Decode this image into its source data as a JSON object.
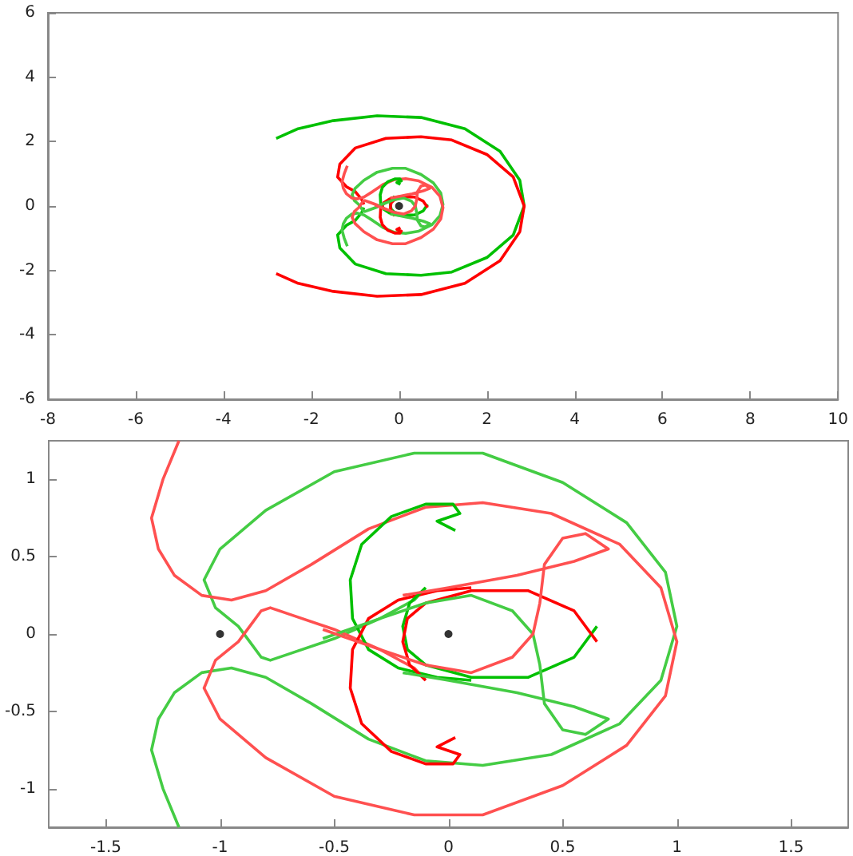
{
  "chart_data": [
    {
      "type": "line",
      "marker": "none",
      "grid": false,
      "xlim": [
        -8,
        10
      ],
      "xticks": [
        -8,
        -6,
        -4,
        -2,
        0,
        2,
        4,
        6,
        8,
        10
      ],
      "ylim": [
        -6,
        6
      ],
      "yticks": [
        -6,
        -4,
        -2,
        0,
        2,
        4,
        6
      ],
      "series": [
        {
          "color": "#00c000",
          "x": [
            -2.8,
            -2.3,
            -1.5,
            -0.5,
            0.5,
            1.5,
            2.3,
            2.75,
            2.85,
            2.6,
            2.0,
            1.2,
            0.5,
            -0.3,
            -1.0,
            -1.35,
            -1.4,
            -1.2,
            -1.0,
            -0.85,
            -0.8
          ],
          "values": [
            2.1,
            2.4,
            2.65,
            2.8,
            2.75,
            2.4,
            1.7,
            0.8,
            0,
            -0.9,
            -1.6,
            -2.05,
            -2.15,
            -2.1,
            -1.8,
            -1.3,
            -0.9,
            -0.6,
            -0.45,
            -0.2,
            -0.05
          ]
        },
        {
          "color": "#ff0000",
          "x": [
            -2.8,
            -2.3,
            -1.5,
            -0.5,
            0.5,
            1.5,
            2.3,
            2.75,
            2.85,
            2.6,
            2.0,
            1.2,
            0.5,
            -0.3,
            -1.0,
            -1.35,
            -1.4,
            -1.2,
            -1.0,
            -0.85,
            -0.8
          ],
          "values": [
            -2.1,
            -2.4,
            -2.65,
            -2.8,
            -2.75,
            -2.4,
            -1.7,
            -0.8,
            0,
            0.9,
            1.6,
            2.05,
            2.15,
            2.1,
            1.8,
            1.3,
            0.9,
            0.6,
            0.45,
            0.2,
            0.05
          ]
        },
        {
          "color": "#44cc44",
          "x": [
            -1.18,
            -1.25,
            -1.3,
            -1.27,
            -1.2,
            -1.08,
            -0.95,
            -0.8,
            -0.6,
            -0.35,
            -0.1,
            0.15,
            0.45,
            0.75,
            0.93,
            1.0,
            0.95,
            0.78,
            0.5,
            0.15,
            -0.15,
            -0.5,
            -0.8,
            -1.0,
            -1.07,
            -1.02,
            -0.92,
            -0.87,
            -0.82,
            -0.78,
            -0.7,
            -0.5,
            -0.3,
            -0.15,
            -0.1
          ],
          "values": [
            -1.25,
            -1.0,
            -0.75,
            -0.55,
            -0.38,
            -0.25,
            -0.22,
            -0.28,
            -0.45,
            -0.68,
            -0.82,
            -0.85,
            -0.78,
            -0.58,
            -0.3,
            0.05,
            0.4,
            0.72,
            0.98,
            1.17,
            1.17,
            1.05,
            0.8,
            0.55,
            0.35,
            0.17,
            0.05,
            -0.05,
            -0.15,
            -0.17,
            -0.13,
            -0.03,
            0.1,
            0.22,
            0.3
          ]
        },
        {
          "color": "#ff5050",
          "x": [
            -1.18,
            -1.25,
            -1.3,
            -1.27,
            -1.2,
            -1.08,
            -0.95,
            -0.8,
            -0.6,
            -0.35,
            -0.1,
            0.15,
            0.45,
            0.75,
            0.93,
            1.0,
            0.95,
            0.78,
            0.5,
            0.15,
            -0.15,
            -0.5,
            -0.8,
            -1.0,
            -1.07,
            -1.02,
            -0.92,
            -0.87,
            -0.82,
            -0.78,
            -0.7,
            -0.5,
            -0.3,
            -0.15,
            -0.1
          ],
          "values": [
            1.25,
            1.0,
            0.75,
            0.55,
            0.38,
            0.25,
            0.22,
            0.28,
            0.45,
            0.68,
            0.82,
            0.85,
            0.78,
            0.58,
            0.3,
            -0.05,
            -0.4,
            -0.72,
            -0.98,
            -1.17,
            -1.17,
            -1.05,
            -0.8,
            -0.55,
            -0.35,
            -0.17,
            -0.05,
            0.05,
            0.15,
            0.17,
            0.13,
            0.03,
            -0.1,
            -0.22,
            -0.3
          ]
        },
        {
          "color": "#00c000",
          "x": [
            0.03,
            -0.05,
            0.05,
            0.02,
            -0.1,
            -0.25,
            -0.38,
            -0.43,
            -0.42,
            -0.35,
            -0.22,
            -0.05,
            0.1
          ],
          "values": [
            0.67,
            0.73,
            0.78,
            0.84,
            0.84,
            0.76,
            0.58,
            0.35,
            0.1,
            -0.1,
            -0.22,
            -0.28,
            -0.3
          ]
        },
        {
          "color": "#ff0000",
          "x": [
            0.03,
            -0.05,
            0.05,
            0.02,
            -0.1,
            -0.25,
            -0.38,
            -0.43,
            -0.42,
            -0.35,
            -0.22,
            -0.05,
            0.1
          ],
          "values": [
            -0.67,
            -0.73,
            -0.78,
            -0.84,
            -0.84,
            -0.76,
            -0.58,
            -0.35,
            -0.1,
            0.1,
            0.22,
            0.28,
            0.3
          ]
        },
        {
          "color": "#00c000",
          "x": [
            -0.1,
            -0.17,
            -0.2,
            -0.18,
            -0.1,
            0.1,
            0.35,
            0.55,
            0.65
          ],
          "values": [
            0.3,
            0.2,
            0.05,
            -0.1,
            -0.2,
            -0.28,
            -0.28,
            -0.15,
            0.05
          ]
        },
        {
          "color": "#ff0000",
          "x": [
            -0.1,
            -0.17,
            -0.2,
            -0.18,
            -0.1,
            0.1,
            0.35,
            0.55,
            0.65
          ],
          "values": [
            -0.3,
            -0.2,
            -0.05,
            0.1,
            0.2,
            0.28,
            0.28,
            0.15,
            -0.05
          ]
        },
        {
          "color": "#44cc44",
          "x": [
            -0.55,
            -0.3,
            -0.1,
            0.1,
            0.28,
            0.37,
            0.4,
            0.42,
            0.5,
            0.6,
            0.7,
            0.55,
            0.3,
            0.0,
            -0.2
          ],
          "values": [
            -0.03,
            0.1,
            0.2,
            0.25,
            0.15,
            0.0,
            -0.2,
            -0.45,
            -0.62,
            -0.65,
            -0.55,
            -0.47,
            -0.38,
            -0.3,
            -0.25
          ]
        },
        {
          "color": "#ff5050",
          "x": [
            -0.55,
            -0.3,
            -0.1,
            0.1,
            0.28,
            0.37,
            0.4,
            0.42,
            0.5,
            0.6,
            0.7,
            0.55,
            0.3,
            0.0,
            -0.2
          ],
          "values": [
            0.03,
            -0.1,
            -0.2,
            -0.25,
            -0.15,
            0.0,
            0.2,
            0.45,
            0.62,
            0.65,
            0.55,
            0.47,
            0.38,
            0.3,
            0.25
          ]
        },
        {
          "type": "scatter",
          "marker": "circle",
          "color": "#000000",
          "x": [
            0
          ],
          "values": [
            0
          ]
        }
      ]
    },
    {
      "type": "line",
      "marker": "none",
      "grid": false,
      "xlim": [
        -1.75,
        1.75
      ],
      "xticks": [
        -1.5,
        -1,
        -0.5,
        0,
        0.5,
        1,
        1.5
      ],
      "ylim": [
        -1.25,
        1.25
      ],
      "yticks": [
        -1,
        -0.5,
        0,
        0.5,
        1
      ],
      "series": [
        {
          "color": "#44cc44",
          "x": [
            -1.18,
            -1.25,
            -1.3,
            -1.27,
            -1.2,
            -1.08,
            -0.95,
            -0.8,
            -0.6,
            -0.35,
            -0.1,
            0.15,
            0.45,
            0.75,
            0.93,
            1.0,
            0.95,
            0.78,
            0.5,
            0.15,
            -0.15,
            -0.5,
            -0.8,
            -1.0,
            -1.07,
            -1.02,
            -0.92,
            -0.87,
            -0.82,
            -0.78,
            -0.7,
            -0.5,
            -0.3,
            -0.15,
            -0.1
          ],
          "values": [
            -1.25,
            -1.0,
            -0.75,
            -0.55,
            -0.38,
            -0.25,
            -0.22,
            -0.28,
            -0.45,
            -0.68,
            -0.82,
            -0.85,
            -0.78,
            -0.58,
            -0.3,
            0.05,
            0.4,
            0.72,
            0.98,
            1.17,
            1.17,
            1.05,
            0.8,
            0.55,
            0.35,
            0.17,
            0.05,
            -0.05,
            -0.15,
            -0.17,
            -0.13,
            -0.03,
            0.1,
            0.22,
            0.3
          ]
        },
        {
          "color": "#ff5050",
          "x": [
            -1.18,
            -1.25,
            -1.3,
            -1.27,
            -1.2,
            -1.08,
            -0.95,
            -0.8,
            -0.6,
            -0.35,
            -0.1,
            0.15,
            0.45,
            0.75,
            0.93,
            1.0,
            0.95,
            0.78,
            0.5,
            0.15,
            -0.15,
            -0.5,
            -0.8,
            -1.0,
            -1.07,
            -1.02,
            -0.92,
            -0.87,
            -0.82,
            -0.78,
            -0.7,
            -0.5,
            -0.3,
            -0.15,
            -0.1
          ],
          "values": [
            1.25,
            1.0,
            0.75,
            0.55,
            0.38,
            0.25,
            0.22,
            0.28,
            0.45,
            0.68,
            0.82,
            0.85,
            0.78,
            0.58,
            0.3,
            -0.05,
            -0.4,
            -0.72,
            -0.98,
            -1.17,
            -1.17,
            -1.05,
            -0.8,
            -0.55,
            -0.35,
            -0.17,
            -0.05,
            0.05,
            0.15,
            0.17,
            0.13,
            0.03,
            -0.1,
            -0.22,
            -0.3
          ]
        },
        {
          "color": "#00c000",
          "x": [
            0.03,
            -0.05,
            0.05,
            0.02,
            -0.1,
            -0.25,
            -0.38,
            -0.43,
            -0.42,
            -0.35,
            -0.22,
            -0.05,
            0.1
          ],
          "values": [
            0.67,
            0.73,
            0.78,
            0.84,
            0.84,
            0.76,
            0.58,
            0.35,
            0.1,
            -0.1,
            -0.22,
            -0.28,
            -0.3
          ]
        },
        {
          "color": "#ff0000",
          "x": [
            0.03,
            -0.05,
            0.05,
            0.02,
            -0.1,
            -0.25,
            -0.38,
            -0.43,
            -0.42,
            -0.35,
            -0.22,
            -0.05,
            0.1
          ],
          "values": [
            -0.67,
            -0.73,
            -0.78,
            -0.84,
            -0.84,
            -0.76,
            -0.58,
            -0.35,
            -0.1,
            0.1,
            0.22,
            0.28,
            0.3
          ]
        },
        {
          "color": "#00c000",
          "x": [
            -0.1,
            -0.17,
            -0.2,
            -0.18,
            -0.1,
            0.1,
            0.35,
            0.55,
            0.65
          ],
          "values": [
            0.3,
            0.2,
            0.05,
            -0.1,
            -0.2,
            -0.28,
            -0.28,
            -0.15,
            0.05
          ]
        },
        {
          "color": "#ff0000",
          "x": [
            -0.1,
            -0.17,
            -0.2,
            -0.18,
            -0.1,
            0.1,
            0.35,
            0.55,
            0.65
          ],
          "values": [
            -0.3,
            -0.2,
            -0.05,
            0.1,
            0.2,
            0.28,
            0.28,
            0.15,
            -0.05
          ]
        },
        {
          "color": "#44cc44",
          "x": [
            -0.55,
            -0.3,
            -0.1,
            0.1,
            0.28,
            0.37,
            0.4,
            0.42,
            0.5,
            0.6,
            0.7,
            0.55,
            0.3,
            0.0,
            -0.2
          ],
          "values": [
            -0.03,
            0.1,
            0.2,
            0.25,
            0.15,
            0.0,
            -0.2,
            -0.45,
            -0.62,
            -0.65,
            -0.55,
            -0.47,
            -0.38,
            -0.3,
            -0.25
          ]
        },
        {
          "color": "#ff5050",
          "x": [
            -0.55,
            -0.3,
            -0.1,
            0.1,
            0.28,
            0.37,
            0.4,
            0.42,
            0.5,
            0.6,
            0.7,
            0.55,
            0.3,
            0.0,
            -0.2
          ],
          "values": [
            0.03,
            -0.1,
            -0.2,
            -0.25,
            -0.15,
            0.0,
            0.2,
            0.45,
            0.62,
            0.65,
            0.55,
            0.47,
            0.38,
            0.3,
            0.25
          ]
        },
        {
          "type": "scatter",
          "marker": "circle",
          "color": "#000000",
          "x": [
            0,
            -1
          ],
          "values": [
            0,
            0
          ]
        }
      ]
    }
  ]
}
